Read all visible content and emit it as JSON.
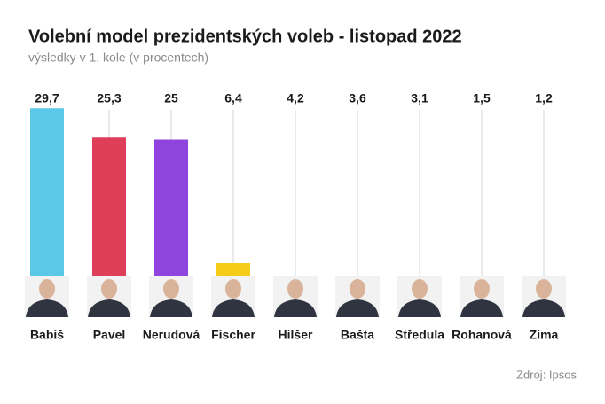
{
  "chart_data": {
    "type": "bar",
    "title": "Volební model prezidentských voleb - listopad 2022",
    "subtitle": "výsledky v 1. kole (v procentech)",
    "categories": [
      "Babiš",
      "Pavel",
      "Nerudová",
      "Fischer",
      "Hilšer",
      "Bašta",
      "Středula",
      "Rohanová",
      "Zima"
    ],
    "values": [
      29.7,
      25.3,
      25,
      6.4,
      4.2,
      3.6,
      3.1,
      1.5,
      1.2
    ],
    "value_labels": [
      "29,7",
      "25,3",
      "25",
      "6,4",
      "4,2",
      "3,6",
      "3,1",
      "1,5",
      "1,2"
    ],
    "colors": [
      "#5bc8e8",
      "#de3e57",
      "#8e44dd",
      "#f5cc17",
      "#cccccc",
      "#cccccc",
      "#cccccc",
      "#cccccc",
      "#cccccc"
    ],
    "ylim": [
      0,
      30
    ],
    "source": "Zdroj: Ipsos"
  }
}
